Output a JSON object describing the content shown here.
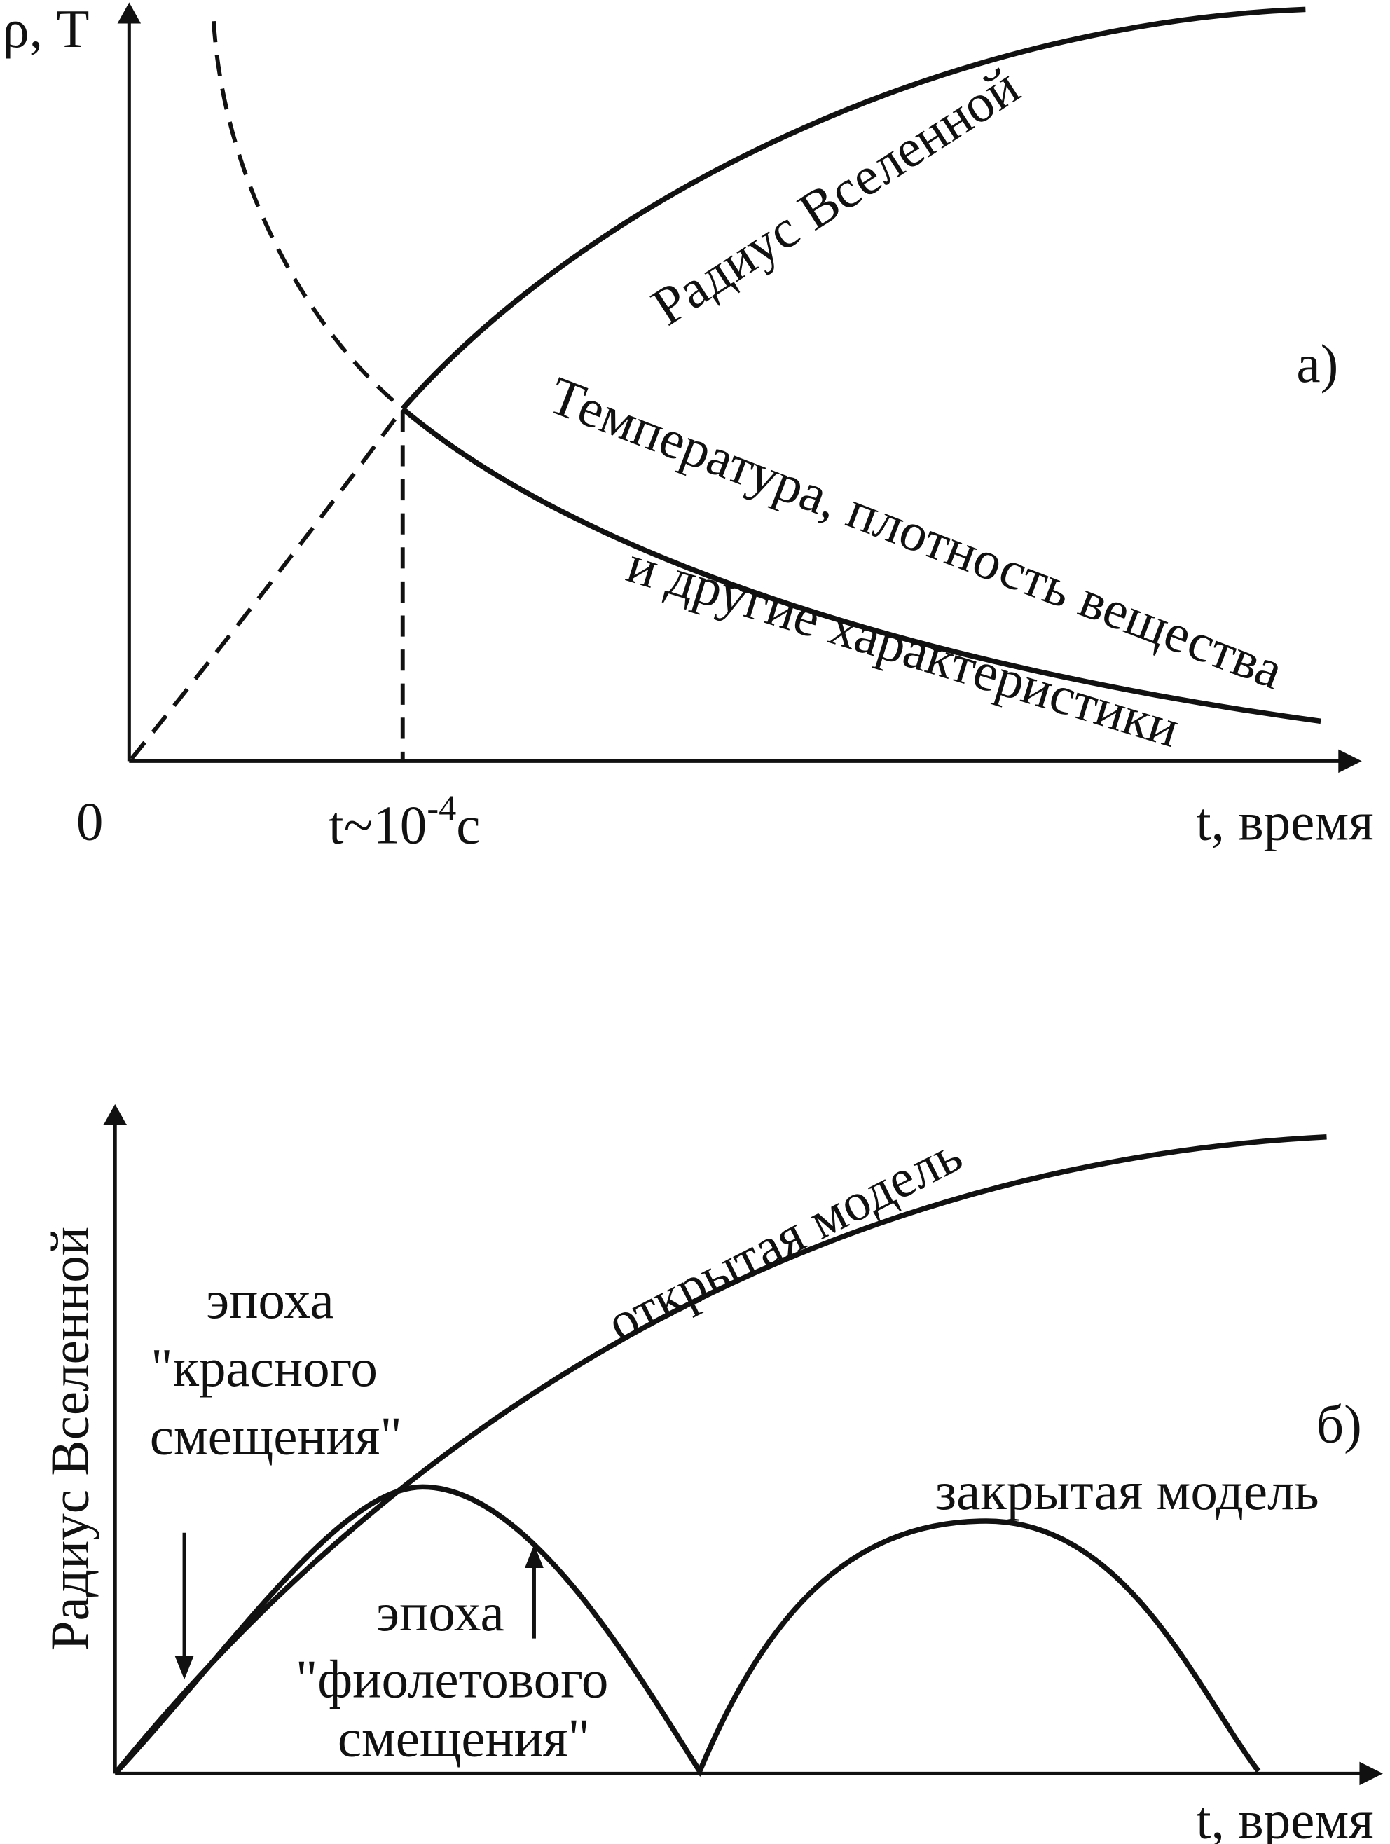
{
  "panel_a": {
    "y_label": "ρ, T",
    "origin": "0",
    "time_mark": {
      "base": "t~10",
      "exponent": "-4",
      "unit": "c"
    },
    "x_label": "t, время",
    "radius_label": "Радиус Вселенной",
    "temperature_label": [
      "Температура, плотность вещества",
      "и другие характеристики"
    ],
    "panel_label": "а)"
  },
  "panel_b": {
    "y_label": "Радиус Вселенной",
    "x_label": "t, время",
    "open_model": "открытая модель",
    "closed_model": "закрытая модель",
    "panel_label": "б)",
    "red_shift": [
      "эпоха",
      "\"красного",
      "смещения\""
    ],
    "violet_shift": [
      "эпоха",
      "\"фиолетового",
      "смещения\""
    ]
  }
}
